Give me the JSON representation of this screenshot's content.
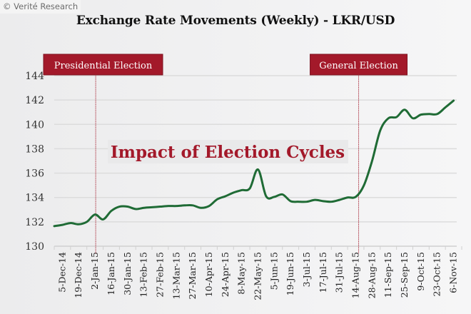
{
  "watermark": "© Verité Research",
  "chart_data": {
    "type": "line",
    "title": "Exchange Rate Movements (Weekly) - LKR/USD",
    "xlabel": "",
    "ylabel": "",
    "ylim": [
      130,
      144
    ],
    "yticks": [
      130,
      132,
      134,
      136,
      138,
      140,
      142,
      144
    ],
    "grid": true,
    "tick_labels": [
      "5-Dec-14",
      "19-Dec-14",
      "2-Jan-15",
      "16-Jan-15",
      "30-Jan-15",
      "13-Feb-15",
      "27-Feb-15",
      "13-Mar-15",
      "27-Mar-15",
      "10-Apr-15",
      "24-Apr-15",
      "8-May-15",
      "22-May-15",
      "5-Jun-15",
      "19-Jun-15",
      "3-Jul-15",
      "17-Jul-15",
      "31-Jul-15",
      "14-Aug-15",
      "28-Aug-15",
      "11-Sep-15",
      "25-Sep-15",
      "9-Oct-15",
      "23-Oct-15",
      "6-Nov-15"
    ],
    "series": [
      {
        "name": "LKR/USD",
        "color": "#1f6b35",
        "values": [
          131.65,
          131.75,
          131.9,
          131.8,
          132.0,
          132.6,
          132.2,
          132.9,
          133.25,
          133.25,
          133.05,
          133.15,
          133.2,
          133.25,
          133.3,
          133.3,
          133.35,
          133.35,
          133.15,
          133.3,
          133.85,
          134.1,
          134.4,
          134.6,
          134.75,
          136.3,
          134.1,
          134.05,
          134.25,
          133.7,
          133.65,
          133.65,
          133.8,
          133.7,
          133.65,
          133.8,
          134.0,
          134.05,
          135.0,
          137.0,
          139.5,
          140.5,
          140.6,
          141.2,
          140.5,
          140.8,
          140.85,
          140.85,
          141.4,
          141.95
        ]
      }
    ],
    "events": [
      {
        "label": "Presidential Election",
        "week_index": 5,
        "color": "#a3192a"
      },
      {
        "label": "General Election",
        "week_index": 37,
        "color": "#a3192a"
      }
    ],
    "annotation": "Impact of Election Cycles"
  }
}
